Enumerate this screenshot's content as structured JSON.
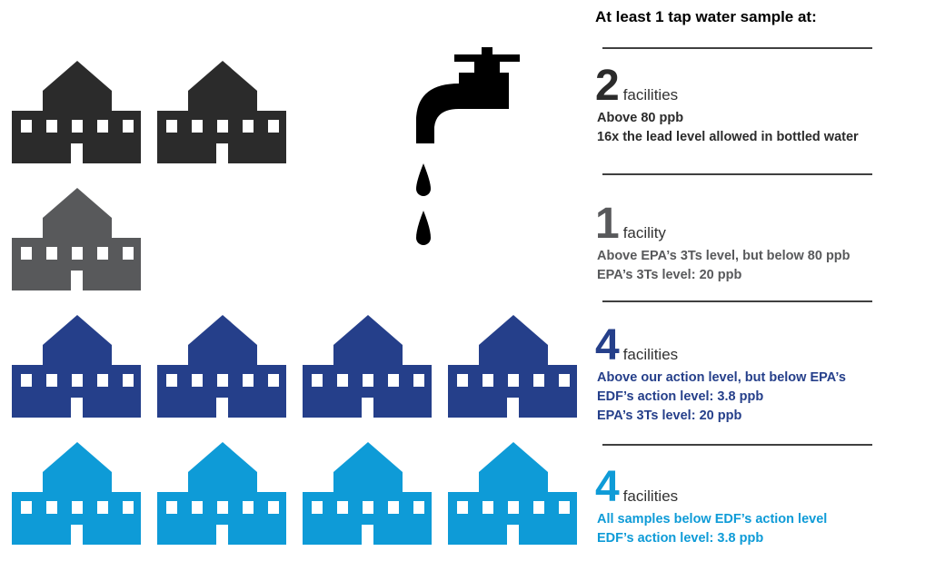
{
  "title": "At least 1 tap water sample at:",
  "groups": [
    {
      "count": 2,
      "unit": "facilities",
      "color": "#2b2b2b",
      "lines": [
        "Above 80 ppb",
        "16x the lead level allowed in bottled water"
      ]
    },
    {
      "count": 1,
      "unit": "facility",
      "color": "#58595b",
      "lines": [
        "Above EPA’s 3Ts level, but below 80 ppb",
        "EPA’s 3Ts level: 20 ppb"
      ]
    },
    {
      "count": 4,
      "unit": "facilities",
      "color": "#253f8a",
      "lines": [
        "Above our action level, but below EPA’s",
        "EDF’s action level: 3.8 ppb",
        "EPA’s 3Ts level: 20 ppb"
      ]
    },
    {
      "count": 4,
      "unit": "facilities",
      "color": "#0e9bd7",
      "lines": [
        "All samples below EDF’s action level",
        "EDF’s action level: 3.8 ppb"
      ]
    }
  ]
}
